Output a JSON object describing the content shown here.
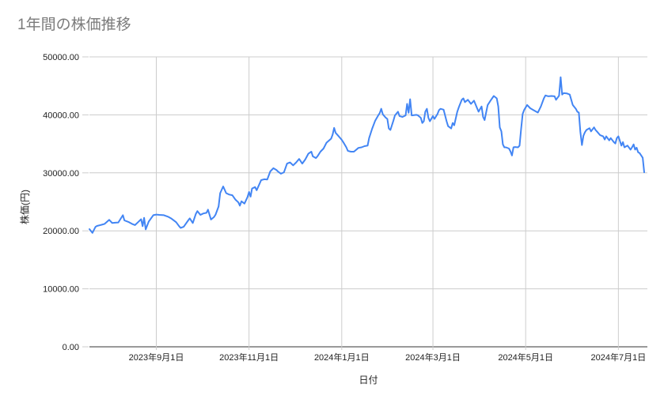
{
  "page": {
    "title": "1年間の株価推移"
  },
  "colors": {
    "series_line": "#4285f4",
    "gridline": "#cccccc",
    "baseline": "#333333",
    "tick_label": "#222222",
    "axis_title": "#222222",
    "chart_title": "#7b7b7b",
    "background": "#ffffff"
  },
  "chart_data": {
    "type": "line",
    "title": "1年間の株価推移",
    "xlabel": "日付",
    "ylabel": "株価(円)",
    "legend": "none",
    "grid": "on",
    "y_axis": {
      "min": 0,
      "max": 50000,
      "grid_interval": 10000
    },
    "x_axis": {
      "unit": "days_from_first_point",
      "min": 0,
      "max": 365
    },
    "y_ticks": [
      {
        "label": "0.00",
        "value": 0
      },
      {
        "label": "10000.00",
        "value": 10000
      },
      {
        "label": "20000.00",
        "value": 20000
      },
      {
        "label": "30000.00",
        "value": 30000
      },
      {
        "label": "40000.00",
        "value": 40000
      },
      {
        "label": "50000.00",
        "value": 50000
      }
    ],
    "x_ticks": [
      {
        "label": "2023年9月1日",
        "day": 44
      },
      {
        "label": "2023年11月1日",
        "day": 105
      },
      {
        "label": "2024年1月1日",
        "day": 166
      },
      {
        "label": "2024年3月1日",
        "day": 226
      },
      {
        "label": "2024年5月1日",
        "day": 287
      },
      {
        "label": "2024年7月1日",
        "day": 348
      }
    ],
    "series": [
      {
        "name": "株価",
        "color": "#4285f4",
        "points": [
          [
            0,
            20300
          ],
          [
            2,
            19650
          ],
          [
            4,
            20700
          ],
          [
            5,
            20850
          ],
          [
            8,
            21050
          ],
          [
            10,
            21200
          ],
          [
            13,
            21900
          ],
          [
            15,
            21350
          ],
          [
            17,
            21400
          ],
          [
            19,
            21450
          ],
          [
            22,
            22700
          ],
          [
            23,
            21800
          ],
          [
            26,
            21500
          ],
          [
            28,
            21200
          ],
          [
            30,
            21000
          ],
          [
            32,
            21500
          ],
          [
            34,
            22000
          ],
          [
            35,
            20800
          ],
          [
            36,
            22250
          ],
          [
            37,
            20250
          ],
          [
            39,
            21600
          ],
          [
            42,
            22700
          ],
          [
            44,
            22800
          ],
          [
            46,
            22750
          ],
          [
            49,
            22700
          ],
          [
            52,
            22400
          ],
          [
            54,
            22100
          ],
          [
            57,
            21500
          ],
          [
            59,
            20800
          ],
          [
            60,
            20500
          ],
          [
            62,
            20700
          ],
          [
            65,
            21800
          ],
          [
            66,
            22150
          ],
          [
            68,
            21350
          ],
          [
            70,
            22900
          ],
          [
            71,
            23400
          ],
          [
            73,
            22750
          ],
          [
            75,
            23000
          ],
          [
            77,
            23100
          ],
          [
            78,
            23650
          ],
          [
            80,
            21950
          ],
          [
            82,
            22400
          ],
          [
            83,
            22800
          ],
          [
            85,
            24200
          ],
          [
            86,
            26500
          ],
          [
            88,
            27650
          ],
          [
            90,
            26500
          ],
          [
            92,
            26250
          ],
          [
            94,
            26150
          ],
          [
            96,
            25400
          ],
          [
            98,
            24900
          ],
          [
            99,
            24350
          ],
          [
            100,
            25100
          ],
          [
            102,
            24700
          ],
          [
            104,
            25800
          ],
          [
            105,
            26700
          ],
          [
            106,
            25900
          ],
          [
            107,
            27300
          ],
          [
            109,
            27550
          ],
          [
            110,
            27000
          ],
          [
            113,
            28750
          ],
          [
            115,
            28900
          ],
          [
            117,
            28850
          ],
          [
            119,
            30250
          ],
          [
            121,
            30800
          ],
          [
            123,
            30500
          ],
          [
            124,
            30250
          ],
          [
            126,
            29850
          ],
          [
            128,
            30100
          ],
          [
            130,
            31600
          ],
          [
            132,
            31800
          ],
          [
            134,
            31300
          ],
          [
            136,
            31800
          ],
          [
            138,
            32400
          ],
          [
            140,
            31600
          ],
          [
            142,
            32300
          ],
          [
            144,
            33300
          ],
          [
            146,
            33650
          ],
          [
            147,
            32850
          ],
          [
            149,
            32550
          ],
          [
            150,
            32850
          ],
          [
            152,
            33650
          ],
          [
            154,
            34200
          ],
          [
            156,
            35200
          ],
          [
            159,
            35900
          ],
          [
            160,
            36600
          ],
          [
            161,
            37750
          ],
          [
            162,
            36900
          ],
          [
            164,
            36300
          ],
          [
            166,
            35700
          ],
          [
            167,
            35300
          ],
          [
            169,
            34400
          ],
          [
            170,
            33800
          ],
          [
            172,
            33650
          ],
          [
            174,
            33650
          ],
          [
            177,
            34300
          ],
          [
            179,
            34400
          ],
          [
            181,
            34600
          ],
          [
            183,
            34700
          ],
          [
            184,
            36000
          ],
          [
            186,
            37600
          ],
          [
            188,
            39000
          ],
          [
            190,
            39900
          ],
          [
            191,
            40300
          ],
          [
            192,
            41050
          ],
          [
            193,
            40100
          ],
          [
            195,
            39500
          ],
          [
            196,
            39300
          ],
          [
            197,
            37650
          ],
          [
            198,
            37400
          ],
          [
            200,
            39000
          ],
          [
            201,
            39900
          ],
          [
            203,
            40550
          ],
          [
            204,
            39800
          ],
          [
            206,
            39650
          ],
          [
            208,
            39900
          ],
          [
            209,
            41900
          ],
          [
            210,
            40350
          ],
          [
            211,
            42700
          ],
          [
            212,
            39900
          ],
          [
            215,
            40000
          ],
          [
            216,
            39950
          ],
          [
            218,
            39500
          ],
          [
            219,
            38600
          ],
          [
            220,
            38900
          ],
          [
            221,
            40550
          ],
          [
            222,
            41050
          ],
          [
            223,
            39500
          ],
          [
            224,
            38900
          ],
          [
            226,
            39800
          ],
          [
            227,
            39300
          ],
          [
            229,
            40150
          ],
          [
            230,
            40800
          ],
          [
            231,
            41050
          ],
          [
            233,
            40900
          ],
          [
            234,
            39900
          ],
          [
            235,
            38900
          ],
          [
            236,
            38050
          ],
          [
            238,
            37650
          ],
          [
            239,
            38600
          ],
          [
            240,
            38200
          ],
          [
            242,
            40550
          ],
          [
            243,
            41300
          ],
          [
            245,
            42600
          ],
          [
            246,
            42850
          ],
          [
            247,
            42200
          ],
          [
            249,
            42600
          ],
          [
            251,
            41900
          ],
          [
            253,
            42450
          ],
          [
            255,
            41200
          ],
          [
            256,
            40550
          ],
          [
            258,
            41450
          ],
          [
            259,
            39650
          ],
          [
            260,
            39100
          ],
          [
            262,
            41700
          ],
          [
            264,
            42500
          ],
          [
            266,
            43250
          ],
          [
            268,
            42850
          ],
          [
            269,
            41450
          ],
          [
            270,
            37850
          ],
          [
            271,
            37150
          ],
          [
            272,
            34900
          ],
          [
            273,
            34400
          ],
          [
            274,
            34400
          ],
          [
            276,
            34200
          ],
          [
            277,
            33700
          ],
          [
            278,
            33000
          ],
          [
            279,
            34400
          ],
          [
            280,
            34450
          ],
          [
            282,
            34400
          ],
          [
            283,
            34700
          ],
          [
            284,
            37500
          ],
          [
            285,
            40150
          ],
          [
            286,
            40850
          ],
          [
            288,
            41700
          ],
          [
            290,
            41150
          ],
          [
            292,
            40850
          ],
          [
            294,
            40550
          ],
          [
            295,
            40400
          ],
          [
            297,
            41450
          ],
          [
            299,
            42850
          ],
          [
            300,
            43350
          ],
          [
            302,
            43200
          ],
          [
            304,
            43250
          ],
          [
            306,
            43200
          ],
          [
            307,
            42600
          ],
          [
            309,
            43300
          ],
          [
            310,
            46500
          ],
          [
            311,
            43500
          ],
          [
            312,
            43750
          ],
          [
            314,
            43700
          ],
          [
            316,
            43500
          ],
          [
            318,
            41700
          ],
          [
            320,
            41050
          ],
          [
            321,
            40550
          ],
          [
            322,
            40400
          ],
          [
            323,
            37100
          ],
          [
            324,
            34800
          ],
          [
            325,
            36400
          ],
          [
            326,
            37000
          ],
          [
            327,
            37400
          ],
          [
            329,
            37700
          ],
          [
            330,
            37150
          ],
          [
            332,
            37850
          ],
          [
            333,
            37400
          ],
          [
            334,
            37100
          ],
          [
            336,
            36500
          ],
          [
            338,
            36300
          ],
          [
            339,
            35750
          ],
          [
            340,
            36300
          ],
          [
            342,
            35600
          ],
          [
            343,
            36000
          ],
          [
            345,
            35300
          ],
          [
            346,
            35050
          ],
          [
            347,
            36000
          ],
          [
            348,
            36300
          ],
          [
            350,
            34700
          ],
          [
            351,
            35300
          ],
          [
            352,
            34400
          ],
          [
            354,
            34700
          ],
          [
            356,
            34000
          ],
          [
            357,
            34400
          ],
          [
            358,
            34900
          ],
          [
            359,
            34000
          ],
          [
            360,
            34350
          ],
          [
            361,
            33550
          ],
          [
            362,
            33400
          ],
          [
            364,
            32600
          ],
          [
            365,
            30100
          ]
        ]
      }
    ]
  }
}
